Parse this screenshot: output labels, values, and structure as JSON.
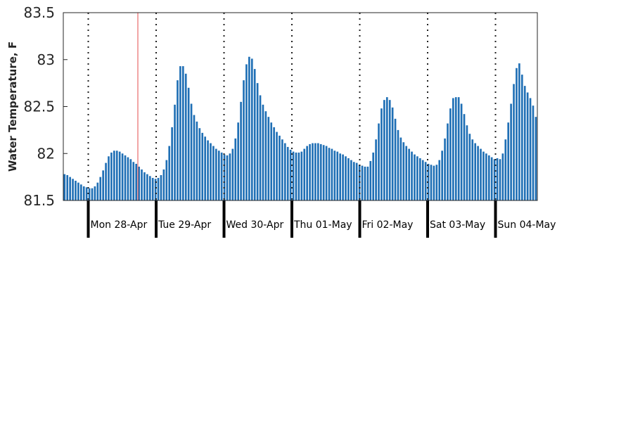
{
  "chart_data": {
    "type": "bar",
    "title": "",
    "xlabel": "",
    "ylabel": "Water Temperature, F",
    "ylim": [
      81.5,
      83.5
    ],
    "yticks": [
      "81.5",
      "82",
      "82.5",
      "83",
      "83.5"
    ],
    "grid": false,
    "legend": "none",
    "bar_color": "#1f6fb5",
    "day_ticks": [
      "Mon 28-Apr",
      "Tue 29-Apr",
      "Wed 30-Apr",
      "Thu 01-May",
      "Fri 02-May",
      "Sat 03-May",
      "Sun 04-May"
    ],
    "marker_color": "#e86a6a",
    "series": [
      {
        "values": [
          81.78,
          81.77,
          81.75,
          81.73,
          81.71,
          81.69,
          81.67,
          81.65,
          81.64,
          81.63,
          81.63,
          81.65,
          81.69,
          81.75,
          81.82,
          81.9,
          81.97,
          82.01,
          82.03,
          82.03,
          82.02,
          82.0,
          81.98,
          81.96,
          81.94,
          81.91,
          81.89,
          81.86,
          81.83,
          81.8,
          81.78,
          81.76,
          81.74,
          81.73,
          81.74,
          81.77,
          81.83,
          81.93,
          82.08,
          82.28,
          82.52,
          82.78,
          82.93,
          82.93,
          82.85,
          82.7,
          82.53,
          82.41,
          82.34,
          82.27,
          82.22,
          82.18,
          82.14,
          82.11,
          82.08,
          82.05,
          82.03,
          82.01,
          81.99,
          81.98,
          82.0,
          82.05,
          82.16,
          82.33,
          82.55,
          82.78,
          82.95,
          83.03,
          83.01,
          82.9,
          82.75,
          82.62,
          82.52,
          82.45,
          82.39,
          82.33,
          82.28,
          82.23,
          82.19,
          82.15,
          82.11,
          82.07,
          82.04,
          82.02,
          82.01,
          82.01,
          82.02,
          82.05,
          82.08,
          82.1,
          82.11,
          82.11,
          82.11,
          82.1,
          82.09,
          82.08,
          82.06,
          82.05,
          82.03,
          82.02,
          82.0,
          81.99,
          81.97,
          81.95,
          81.93,
          81.91,
          81.9,
          81.88,
          81.87,
          81.86,
          81.86,
          81.92,
          82.01,
          82.15,
          82.32,
          82.48,
          82.57,
          82.6,
          82.57,
          82.49,
          82.37,
          82.25,
          82.17,
          82.12,
          82.08,
          82.05,
          82.02,
          81.99,
          81.97,
          81.95,
          81.93,
          81.91,
          81.89,
          81.88,
          81.87,
          81.88,
          81.93,
          82.03,
          82.16,
          82.32,
          82.48,
          82.59,
          82.6,
          82.6,
          82.53,
          82.42,
          82.3,
          82.21,
          82.15,
          82.11,
          82.08,
          82.05,
          82.02,
          82.0,
          81.98,
          81.96,
          81.94,
          81.95,
          81.94,
          82.0,
          82.15,
          82.33,
          82.53,
          82.74,
          82.91,
          82.96,
          82.84,
          82.72,
          82.65,
          82.59,
          82.51,
          82.39
        ]
      }
    ]
  }
}
